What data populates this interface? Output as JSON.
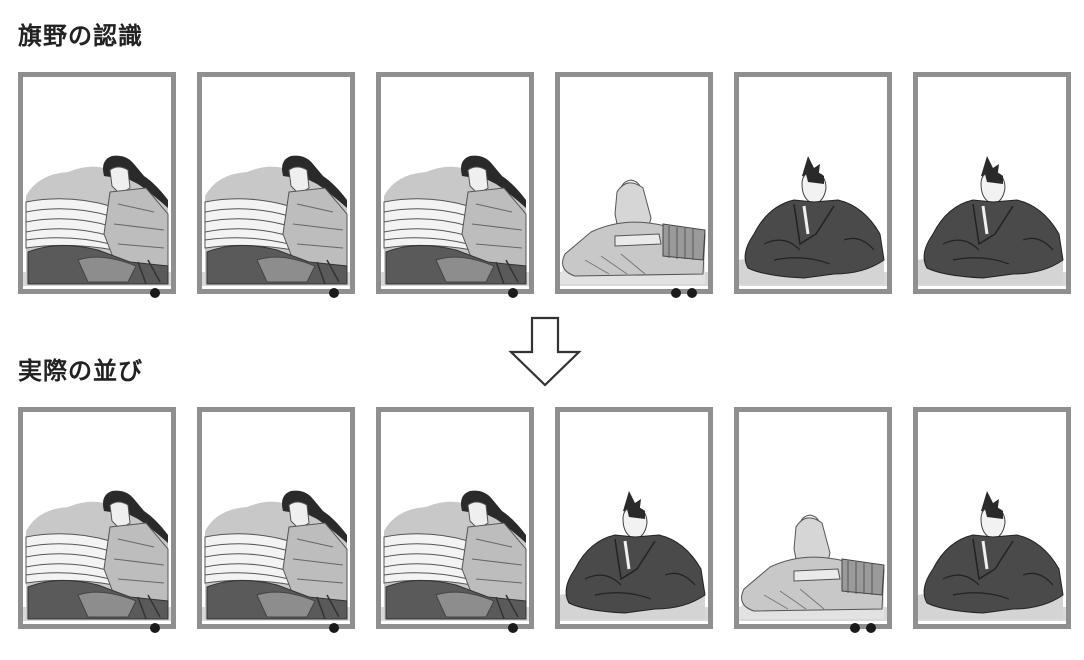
{
  "sections": [
    {
      "title": "旗野の認識",
      "cards": [
        {
          "figure": "lady-icon",
          "dots": 1
        },
        {
          "figure": "lady-icon",
          "dots": 1
        },
        {
          "figure": "lady-icon",
          "dots": 1
        },
        {
          "figure": "monk-icon",
          "dots": 2
        },
        {
          "figure": "samurai-icon",
          "dots": 0
        },
        {
          "figure": "samurai-icon",
          "dots": 0
        }
      ]
    },
    {
      "title": "実際の並び",
      "cards": [
        {
          "figure": "lady-icon",
          "dots": 1
        },
        {
          "figure": "lady-icon",
          "dots": 1
        },
        {
          "figure": "lady-icon",
          "dots": 1
        },
        {
          "figure": "samurai-icon",
          "dots": 0
        },
        {
          "figure": "monk-icon",
          "dots": 2
        },
        {
          "figure": "samurai-icon",
          "dots": 0
        }
      ]
    }
  ],
  "arrow": "down-arrow-icon",
  "colors": {
    "frame": "#8f8f8f",
    "ground": "#d9d9d9",
    "dark_robe": "#4a4a4a",
    "light_robe": "#b5b5b5",
    "dot": "#1a1a1a"
  }
}
